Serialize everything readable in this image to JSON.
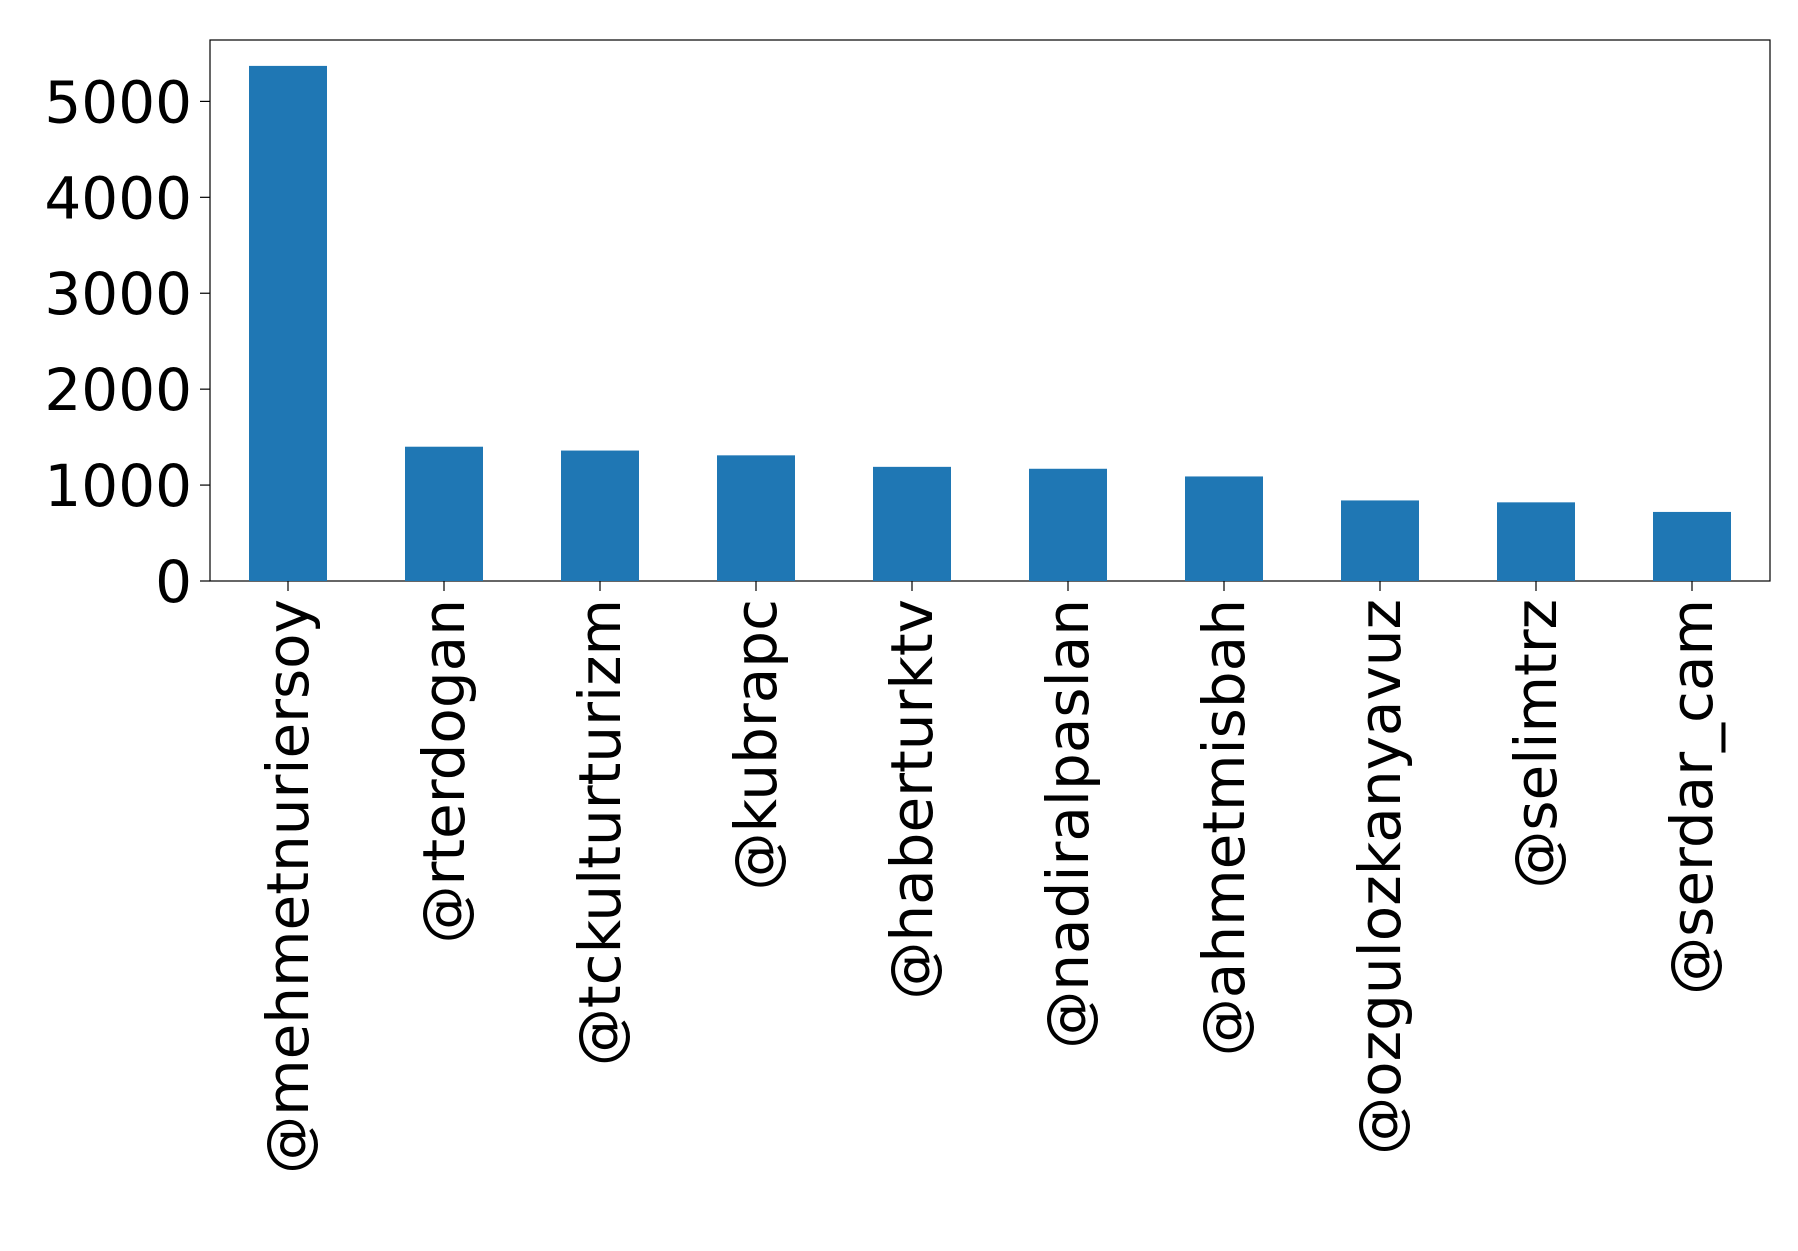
{
  "chart_data": {
    "type": "bar",
    "categories": [
      "@mehmetnuriersoy",
      "@rterdogan",
      "@tckulturturizm",
      "@kubrapc",
      "@haberturktv",
      "@nadiralpaslan",
      "@ahmetmisbah",
      "@ozgulozkanyavuz",
      "@selimtrz",
      "@serdar_cam"
    ],
    "values": [
      5370,
      1400,
      1360,
      1310,
      1190,
      1170,
      1090,
      840,
      820,
      720
    ],
    "title": "",
    "xlabel": "",
    "ylabel": "",
    "ylim": [
      0,
      5640
    ],
    "yticks": [
      0,
      1000,
      2000,
      3000,
      4000,
      5000
    ],
    "grid": false,
    "legend": "none",
    "colors": {
      "bar": "#1f77b4",
      "axis": "#000000",
      "background": "#ffffff"
    }
  }
}
